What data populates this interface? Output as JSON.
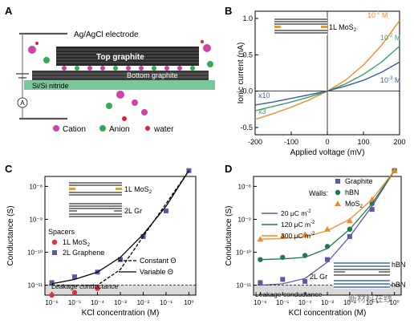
{
  "panel_labels": {
    "a": "A",
    "b": "B",
    "c": "C",
    "d": "D"
  },
  "panel_a": {
    "electrode_label": "Ag/AgCl electrode",
    "top_label": "Top graphite",
    "bottom_label": "Bottom graphite",
    "substrate_label": "Si/Si nitride",
    "ammeter_symbol": "A",
    "legend": [
      "Cation",
      "Anion",
      "water"
    ],
    "colors": {
      "cation": "#cc44aa",
      "anion": "#33aa55",
      "water": "#e02030",
      "substrate": "#7cc79a"
    }
  },
  "panel_b": {
    "inset_label": "1L MoS",
    "inset_sub": "2",
    "scale_x10": "x10",
    "scale_x3": "x3",
    "curve_labels": [
      {
        "base": "10",
        "exp": "-1",
        "unit": " M",
        "color": "#f08a24"
      },
      {
        "base": "10",
        "exp": "-2",
        "unit": " M",
        "color": "#3aa070"
      },
      {
        "base": "10",
        "exp": "-3",
        "unit": " M",
        "color": "#3a5f96"
      }
    ]
  },
  "panel_c": {
    "inset_1l": "1L MoS",
    "inset_1l_sub": "2",
    "inset_2l": "2L Gr",
    "spacers_title": "Spacers",
    "legend_mos2": "1L MoS",
    "legend_mos2_sub": "2",
    "legend_graphene": "2L Graphene",
    "legend_constant": "Constant ",
    "legend_variable": "Variable ",
    "theta": "Θ",
    "leakage": "Leakage conductance"
  },
  "panel_d": {
    "walls_title": "Walls:",
    "legend_graphite": "Graphite",
    "legend_hbn": "hBN",
    "legend_mos2": "MoS",
    "legend_mos2_sub": "2",
    "line_labels": [
      "20 μC m",
      "120 μC m",
      "300 μC m"
    ],
    "line_label_exp": "-2",
    "inset_top": "hBN",
    "inset_bottom": "hBN",
    "gr_label": "2L Gr",
    "leakage": "Leakage conductance",
    "watermark": "新材料在线"
  },
  "chart_data": [
    {
      "panel": "B",
      "type": "line",
      "xlabel": "Applied voltage (mV)",
      "ylabel": "Ionic current (nA)",
      "xlim": [
        -200,
        200
      ],
      "ylim": [
        -0.6,
        1.1
      ],
      "xticks": [
        -200,
        -100,
        0,
        100,
        200
      ],
      "yticks": [
        -0.5,
        0.0,
        0.5,
        1.0
      ],
      "series": [
        {
          "name": "10⁻¹ M",
          "color": "#f08a24",
          "x": [
            -200,
            -150,
            -100,
            -50,
            0,
            50,
            100,
            150,
            200
          ],
          "y": [
            -0.39,
            -0.31,
            -0.22,
            -0.12,
            0.0,
            0.15,
            0.36,
            0.63,
            0.97
          ]
        },
        {
          "name": "10⁻² M",
          "color": "#3aa070",
          "x": [
            -200,
            -150,
            -100,
            -50,
            0,
            50,
            100,
            150,
            200
          ],
          "y": [
            -0.27,
            -0.21,
            -0.15,
            -0.08,
            0.0,
            0.1,
            0.23,
            0.4,
            0.62
          ]
        },
        {
          "name": "10⁻³ M",
          "color": "#3a5f96",
          "x": [
            -200,
            -150,
            -100,
            -50,
            0,
            50,
            100,
            150,
            200
          ],
          "y": [
            -0.19,
            -0.15,
            -0.1,
            -0.05,
            0.0,
            0.07,
            0.15,
            0.26,
            0.4
          ]
        }
      ]
    },
    {
      "panel": "C",
      "type": "scatter",
      "xlabel": "KCl concentration (M)",
      "ylabel": "Conductance (S)",
      "xscale": "log",
      "yscale": "log",
      "xlim": [
        5e-07,
        2
      ],
      "ylim": [
        5e-12,
        2e-08
      ],
      "xticks": [
        "10⁻⁶",
        "10⁻⁵",
        "10⁻⁴",
        "10⁻³",
        "10⁻²",
        "10⁻¹",
        "10⁰"
      ],
      "yticks": [
        "10⁻¹¹",
        "10⁻¹⁰",
        "10⁻⁹",
        "10⁻⁸"
      ],
      "series": [
        {
          "name": "1L MoS₂",
          "marker": "circle",
          "color": "#e0303a",
          "x": [
            1e-06,
            1e-05,
            0.0001
          ],
          "y": [
            5e-12,
            6e-12,
            8e-12
          ]
        },
        {
          "name": "2L Graphene",
          "marker": "square",
          "color": "#5a5aa8",
          "x": [
            1e-06,
            1e-05,
            0.0001,
            0.001,
            0.01,
            0.1,
            1
          ],
          "y": [
            1.2e-11,
            1.8e-11,
            2.5e-11,
            6e-11,
            3e-10,
            1.8e-09,
            3e-08
          ]
        },
        {
          "name": "Constant Θ",
          "style": "dashed",
          "color": "#000000",
          "x": [
            1e-06,
            1e-05,
            0.0001,
            0.001,
            0.01,
            0.1,
            1
          ],
          "y": [
            1e-11,
            1e-11,
            1e-11,
            3e-11,
            3e-10,
            3e-09,
            3e-08
          ]
        },
        {
          "name": "Variable Θ",
          "style": "solid",
          "color": "#000000",
          "x": [
            1e-06,
            1e-05,
            0.0001,
            0.001,
            0.01,
            0.1,
            1
          ],
          "y": [
            1.1e-11,
            1.5e-11,
            2.5e-11,
            7e-11,
            3.5e-10,
            2.5e-09,
            3e-08
          ]
        }
      ]
    },
    {
      "panel": "D",
      "type": "scatter",
      "xlabel": "KCl concentration (M)",
      "ylabel": "Conductance (S)",
      "xscale": "log",
      "yscale": "log",
      "xlim": [
        5e-07,
        2
      ],
      "ylim": [
        5e-12,
        2e-08
      ],
      "xticks": [
        "10⁻⁶",
        "10⁻⁵",
        "10⁻⁴",
        "10⁻³",
        "10⁻²",
        "10⁻¹",
        "10⁰"
      ],
      "yticks": [
        "10⁻¹¹",
        "10⁻¹⁰",
        "10⁻⁹",
        "10⁻⁸"
      ],
      "series": [
        {
          "name": "Graphite",
          "marker": "square",
          "color": "#5a5aa8",
          "x": [
            1e-06,
            1e-05,
            0.0001,
            0.001,
            0.01,
            0.1,
            1
          ],
          "y": [
            1.2e-11,
            1.5e-11,
            1.3e-11,
            6e-11,
            3e-10,
            2e-09,
            3e-08
          ]
        },
        {
          "name": "hBN",
          "marker": "circle",
          "color": "#1f7a4a",
          "x": [
            1e-06,
            1e-05,
            0.0001,
            0.001,
            0.01,
            0.1,
            1
          ],
          "y": [
            6e-11,
            7e-11,
            8e-11,
            1.5e-10,
            5e-10,
            3e-09,
            3e-08
          ]
        },
        {
          "name": "MoS₂",
          "marker": "triangle",
          "color": "#f08a24",
          "x": [
            1e-06,
            1e-05,
            0.0001,
            0.001,
            0.01,
            0.1,
            1
          ],
          "y": [
            2.5e-10,
            3e-10,
            3.5e-10,
            5e-10,
            9e-10,
            4e-09,
            3e-08
          ]
        },
        {
          "name": "20 μC m⁻²",
          "style": "solid",
          "color": "#5a5aa8",
          "x": [
            1e-06,
            1e-05,
            0.0001,
            0.001,
            0.01,
            0.1,
            1
          ],
          "y": [
            1e-11,
            1.1e-11,
            1.6e-11,
            5e-11,
            3e-10,
            2.5e-09,
            3e-08
          ]
        },
        {
          "name": "120 μC m⁻²",
          "style": "solid",
          "color": "#1f7a4a",
          "x": [
            1e-06,
            1e-05,
            0.0001,
            0.001,
            0.01,
            0.1,
            1
          ],
          "y": [
            6e-11,
            6.3e-11,
            7e-11,
            1.3e-10,
            5e-10,
            3e-09,
            3e-08
          ]
        },
        {
          "name": "300 μC m⁻²",
          "style": "solid",
          "color": "#f08a24",
          "x": [
            1e-06,
            1e-05,
            0.0001,
            0.001,
            0.01,
            0.1,
            1
          ],
          "y": [
            2.5e-10,
            2.6e-10,
            2.9e-10,
            4.5e-10,
            1e-09,
            4e-09,
            3e-08
          ]
        }
      ]
    }
  ]
}
